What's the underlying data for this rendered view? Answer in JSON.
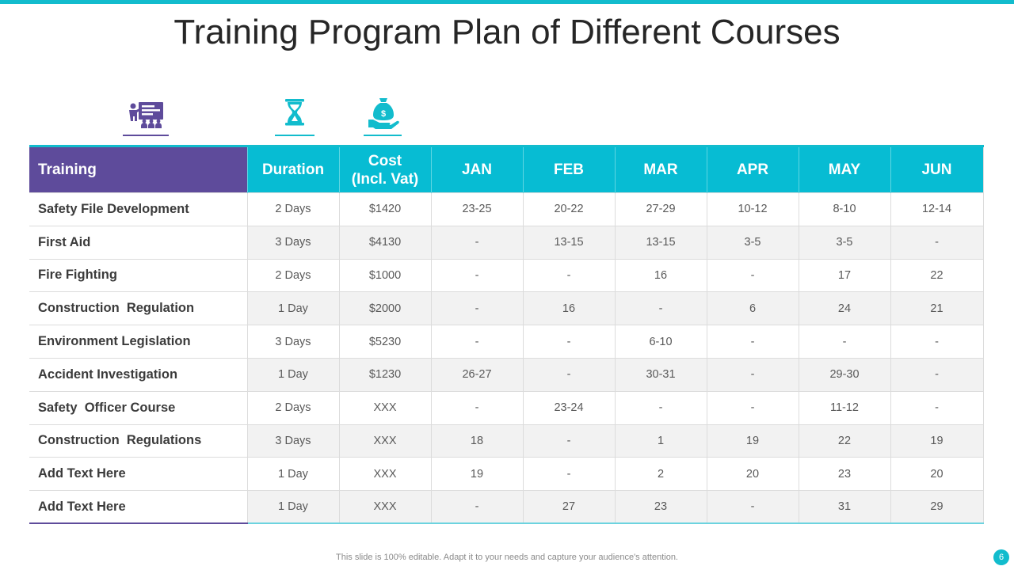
{
  "title": "Training Program Plan of Different Courses",
  "colors": {
    "accent": "#12bccd",
    "purple": "#5e4b9b"
  },
  "icons": [
    "presentation-icon",
    "hourglass-icon",
    "money-bag-hand-icon"
  ],
  "table": {
    "headers": [
      "Training",
      "Duration",
      "Cost\n(Incl. Vat)",
      "JAN",
      "FEB",
      "MAR",
      "APR",
      "MAY",
      "JUN"
    ],
    "rows": [
      [
        "Safety File Development",
        "2 Days",
        "$1420",
        "23-25",
        "20-22",
        "27-29",
        "10-12",
        "8-10",
        "12-14"
      ],
      [
        "First Aid",
        "3 Days",
        "$4130",
        "-",
        "13-15",
        "13-15",
        "3-5",
        "3-5",
        "-"
      ],
      [
        "Fire Fighting",
        "2 Days",
        "$1000",
        "-",
        "-",
        "16",
        "-",
        "17",
        "22"
      ],
      [
        "Construction  Regulation",
        "1 Day",
        "$2000",
        "-",
        "16",
        "-",
        "6",
        "24",
        "21"
      ],
      [
        "Environment Legislation",
        "3 Days",
        "$5230",
        "-",
        "-",
        "6-10",
        "-",
        "-",
        "-"
      ],
      [
        "Accident Investigation",
        "1 Day",
        "$1230",
        "26-27",
        "-",
        "30-31",
        "-",
        "29-30",
        "-"
      ],
      [
        "Safety  Officer Course",
        "2 Days",
        "XXX",
        "-",
        "23-24",
        "-",
        "-",
        "11-12",
        "-"
      ],
      [
        "Construction  Regulations",
        "3 Days",
        "XXX",
        "18",
        "-",
        "1",
        "19",
        "22",
        "19"
      ],
      [
        "Add Text Here",
        "1 Day",
        "XXX",
        "19",
        "-",
        "2",
        "20",
        "23",
        "20"
      ],
      [
        "Add Text Here",
        "1 Day",
        "XXX",
        "-",
        "27",
        "23",
        "-",
        "31",
        "29"
      ]
    ]
  },
  "footer": "This slide is 100% editable. Adapt it to your needs and capture your audience's attention.",
  "page_number": "6"
}
